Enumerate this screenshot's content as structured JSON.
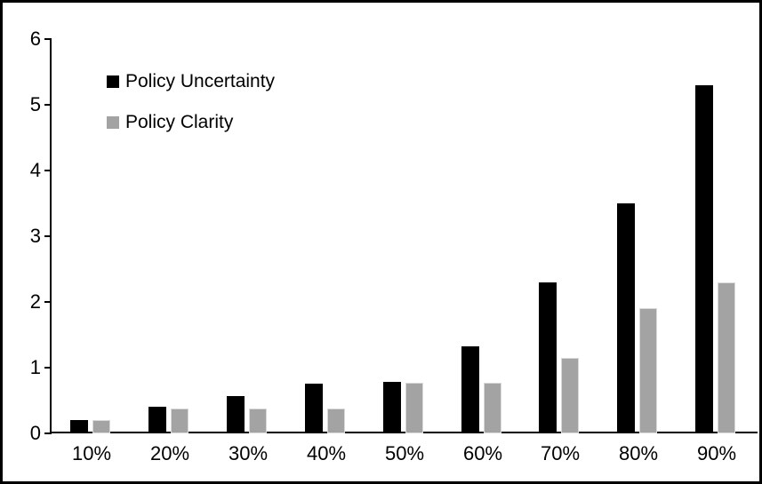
{
  "chart_data": {
    "type": "bar",
    "title": "",
    "xlabel": "",
    "ylabel": "",
    "categories": [
      "10%",
      "20%",
      "30%",
      "40%",
      "50%",
      "60%",
      "70%",
      "80%",
      "90%"
    ],
    "series": [
      {
        "name": "Policy Uncertainty",
        "color": "#000000",
        "values": [
          0.2,
          0.4,
          0.57,
          0.76,
          0.78,
          1.32,
          2.3,
          3.5,
          5.3
        ]
      },
      {
        "name": "Policy Clarity",
        "color": "#a3a3a3",
        "values": [
          0.2,
          0.38,
          0.38,
          0.38,
          0.77,
          0.77,
          1.15,
          1.9,
          2.3
        ]
      }
    ],
    "ylim": [
      0,
      6
    ],
    "yticks": [
      0,
      1,
      2,
      3,
      4,
      5,
      6
    ],
    "grid": false,
    "legend_position": "top-left"
  }
}
